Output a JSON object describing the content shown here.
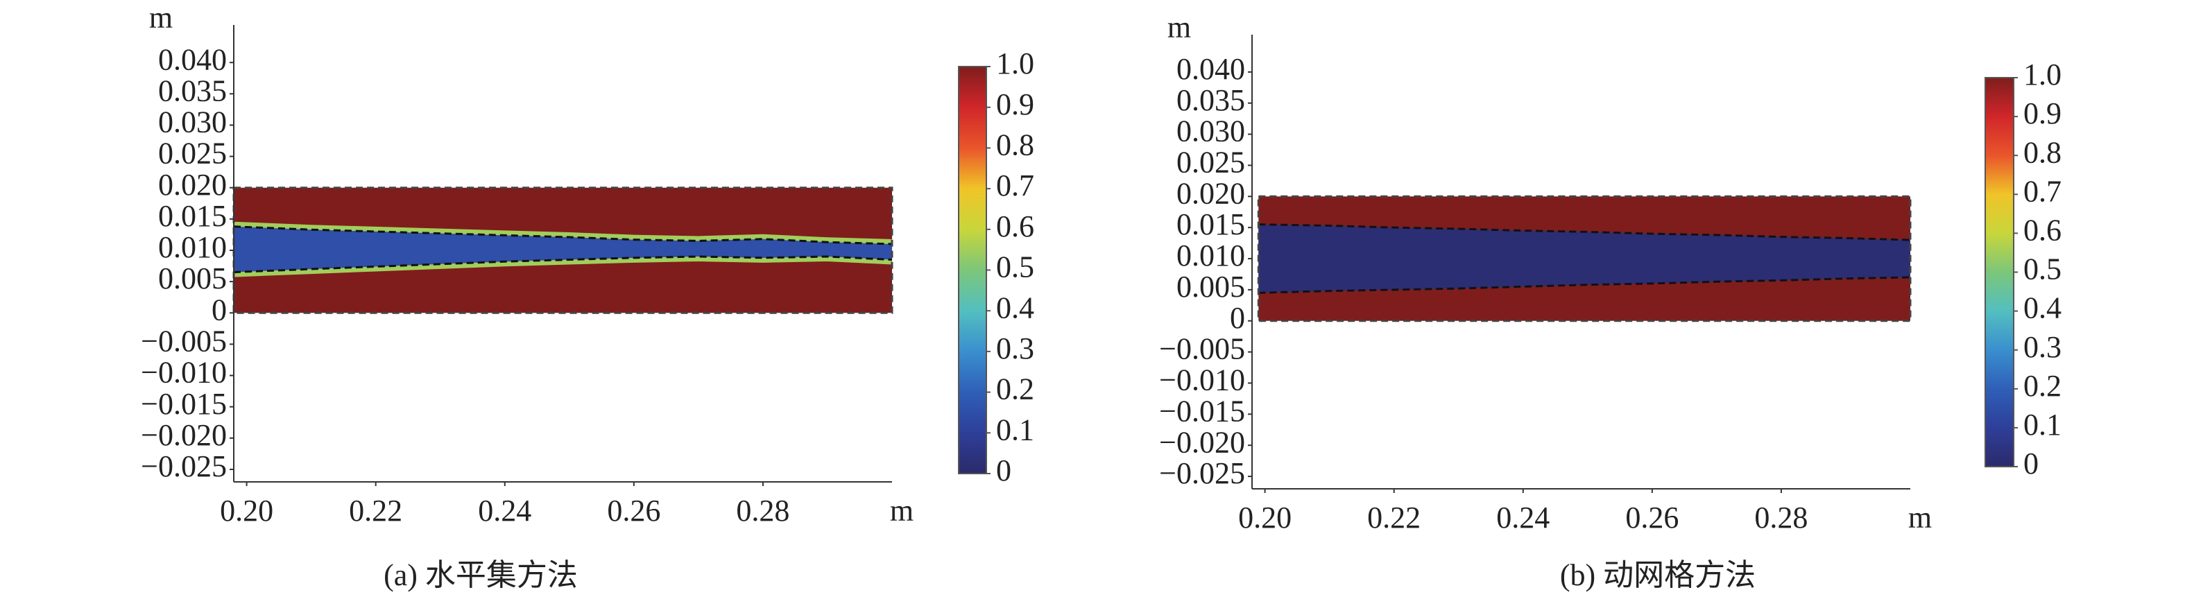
{
  "chart_data": [
    {
      "type": "heatmap",
      "caption": "(a) 水平集方法",
      "xlabel": "m",
      "ylabel": "m",
      "xlim": [
        0.198,
        0.3
      ],
      "ylim": [
        -0.027,
        0.046
      ],
      "xticks": [
        {
          "value": 0.2,
          "label": "0.20"
        },
        {
          "value": 0.22,
          "label": "0.22"
        },
        {
          "value": 0.24,
          "label": "0.24"
        },
        {
          "value": 0.26,
          "label": "0.26"
        },
        {
          "value": 0.28,
          "label": "0.28"
        }
      ],
      "yticks": [
        {
          "value": 0.04,
          "label": "0.040"
        },
        {
          "value": 0.035,
          "label": "0.035"
        },
        {
          "value": 0.03,
          "label": "0.030"
        },
        {
          "value": 0.025,
          "label": "0.025"
        },
        {
          "value": 0.02,
          "label": "0.020"
        },
        {
          "value": 0.015,
          "label": "0.015"
        },
        {
          "value": 0.01,
          "label": "0.010"
        },
        {
          "value": 0.005,
          "label": "0.005"
        },
        0,
        {
          "value": -0.005,
          "label": "−0.005"
        },
        {
          "value": -0.01,
          "label": "−0.010"
        },
        {
          "value": -0.015,
          "label": "−0.015"
        },
        {
          "value": -0.02,
          "label": "−0.020"
        },
        {
          "value": -0.025,
          "label": "−0.025"
        }
      ],
      "domain_x": [
        0.198,
        0.3
      ],
      "domain_y": [
        0,
        0.02
      ],
      "outer_value": 1.0,
      "core_value": 0.15,
      "edge_value": 0.55,
      "x": [
        0.198,
        0.21,
        0.22,
        0.23,
        0.24,
        0.25,
        0.26,
        0.27,
        0.28,
        0.29,
        0.3
      ],
      "lower": [
        0.0065,
        0.007,
        0.0074,
        0.0078,
        0.0082,
        0.0085,
        0.0088,
        0.009,
        0.0088,
        0.009,
        0.0085
      ],
      "upper": [
        0.0138,
        0.0133,
        0.013,
        0.0127,
        0.0124,
        0.0121,
        0.0117,
        0.0115,
        0.0118,
        0.0113,
        0.011
      ],
      "colorbar_ticks": [
        {
          "value": 1,
          "label": "1.0"
        },
        0.9,
        0.8,
        0.7,
        0.6,
        0.5,
        0.4,
        0.3,
        0.2,
        0.1,
        0
      ],
      "colormap": [
        "#2b2a6b",
        "#2e3f99",
        "#2f5fb8",
        "#3a8fce",
        "#53bfbf",
        "#7cc67a",
        "#c8d63b",
        "#f0c428",
        "#e9552b",
        "#d0262a",
        "#7f1d1d"
      ]
    },
    {
      "type": "heatmap",
      "caption": "(b) 动网格方法",
      "xlabel": "m",
      "ylabel": "m",
      "xlim": [
        0.198,
        0.3
      ],
      "ylim": [
        -0.027,
        0.046
      ],
      "xticks": [
        {
          "value": 0.2,
          "label": "0.20"
        },
        {
          "value": 0.22,
          "label": "0.22"
        },
        {
          "value": 0.24,
          "label": "0.24"
        },
        {
          "value": 0.26,
          "label": "0.26"
        },
        {
          "value": 0.28,
          "label": "0.28"
        }
      ],
      "yticks": [
        {
          "value": 0.04,
          "label": "0.040"
        },
        {
          "value": 0.035,
          "label": "0.035"
        },
        {
          "value": 0.03,
          "label": "0.030"
        },
        {
          "value": 0.025,
          "label": "0.025"
        },
        {
          "value": 0.02,
          "label": "0.020"
        },
        {
          "value": 0.015,
          "label": "0.015"
        },
        {
          "value": 0.01,
          "label": "0.010"
        },
        {
          "value": 0.005,
          "label": "0.005"
        },
        0,
        {
          "value": -0.005,
          "label": "−0.005"
        },
        {
          "value": -0.01,
          "label": "−0.010"
        },
        {
          "value": -0.015,
          "label": "−0.015"
        },
        {
          "value": -0.02,
          "label": "−0.020"
        },
        {
          "value": -0.025,
          "label": "−0.025"
        }
      ],
      "domain_x": [
        0.199,
        0.3
      ],
      "domain_y": [
        0,
        0.02
      ],
      "outer_value": 1.0,
      "core_value": 0.02,
      "x": [
        0.199,
        0.21,
        0.22,
        0.23,
        0.24,
        0.25,
        0.26,
        0.27,
        0.28,
        0.29,
        0.3
      ],
      "lower": [
        0.0045,
        0.0048,
        0.005,
        0.0052,
        0.0055,
        0.0058,
        0.006,
        0.0063,
        0.0065,
        0.0068,
        0.007
      ],
      "upper": [
        0.0155,
        0.0153,
        0.015,
        0.0148,
        0.0145,
        0.0143,
        0.014,
        0.0138,
        0.0135,
        0.0133,
        0.013
      ],
      "colorbar_ticks": [
        {
          "value": 1,
          "label": "1.0"
        },
        0.9,
        0.8,
        0.7,
        0.6,
        0.5,
        0.4,
        0.3,
        0.2,
        0.1,
        0
      ],
      "colormap": [
        "#2b2a6b",
        "#2e3f99",
        "#2f5fb8",
        "#3a8fce",
        "#53bfbf",
        "#7cc67a",
        "#c8d63b",
        "#f0c428",
        "#e9552b",
        "#d0262a",
        "#7f1d1d"
      ]
    }
  ]
}
